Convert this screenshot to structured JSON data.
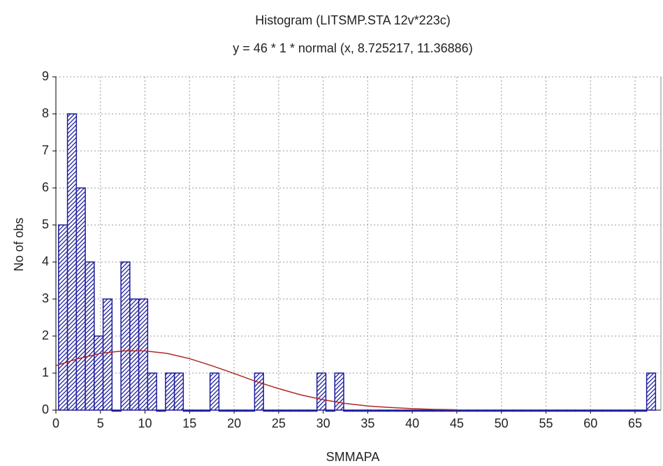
{
  "chart_data": {
    "type": "histogram",
    "title": "Histogram (LITSMP.STA 12v*223c)",
    "subtitle": "y = 46 * 1 * normal (x, 8.725217, 11.36886)",
    "x_label": "SMMAPA",
    "y_label": "No of obs",
    "bins": [
      0.3,
      1.3,
      2.3,
      3.3,
      4.3,
      5.3,
      6.3,
      7.3,
      8.3,
      9.3,
      10.3,
      11.3,
      12.3,
      13.3,
      14.3,
      15.3,
      16.3,
      17.3,
      18.3,
      19.3,
      20.3,
      21.3,
      22.3,
      23.3,
      24.3,
      25.3,
      26.3,
      27.3,
      28.3,
      29.3,
      30.3,
      31.3,
      32.3,
      33.3,
      34.3,
      35.3,
      36.3,
      37.3,
      38.3,
      39.3,
      40.3,
      41.3,
      42.3,
      43.3,
      44.3,
      45.3,
      46.3,
      47.3,
      48.3,
      49.3,
      50.3,
      51.3,
      52.3,
      53.3,
      54.3,
      55.3,
      56.3,
      57.3,
      58.3,
      59.3,
      60.3,
      61.3,
      62.3,
      63.3,
      64.3,
      65.3,
      66.3,
      67.3
    ],
    "counts": [
      5,
      8,
      6,
      4,
      2,
      3,
      0,
      4,
      3,
      3,
      1,
      0,
      1,
      1,
      0,
      0,
      0,
      1,
      0,
      0,
      0,
      0,
      1,
      0,
      0,
      0,
      0,
      0,
      0,
      1,
      0,
      1,
      0,
      0,
      0,
      0,
      0,
      0,
      0,
      0,
      0,
      0,
      0,
      0,
      0,
      0,
      0,
      0,
      0,
      0,
      0,
      0,
      0,
      0,
      0,
      0,
      0,
      0,
      0,
      0,
      0,
      0,
      0,
      0,
      0,
      0,
      1
    ],
    "color": "#1c1c9c",
    "curve": {
      "x": [
        0,
        2.5,
        5,
        7.5,
        10,
        12.5,
        15,
        17.5,
        20,
        22.5,
        25,
        27.5,
        30,
        32.5,
        35,
        37.5,
        40,
        42.5,
        45
      ],
      "values": [
        1.2,
        1.39,
        1.53,
        1.6,
        1.6,
        1.53,
        1.39,
        1.2,
        0.99,
        0.77,
        0.58,
        0.41,
        0.28,
        0.18,
        0.11,
        0.07,
        0.04,
        0.02,
        0.01
      ],
      "color": "#b02828"
    },
    "xlim": [
      0,
      67.9
    ],
    "ylim": [
      0,
      9
    ],
    "xticks": [
      0,
      5,
      10,
      15,
      20,
      25,
      30,
      35,
      40,
      45,
      50,
      55,
      60,
      65
    ],
    "yticks": [
      0,
      1,
      2,
      3,
      4,
      5,
      6,
      7,
      8,
      9
    ],
    "grid": true
  }
}
